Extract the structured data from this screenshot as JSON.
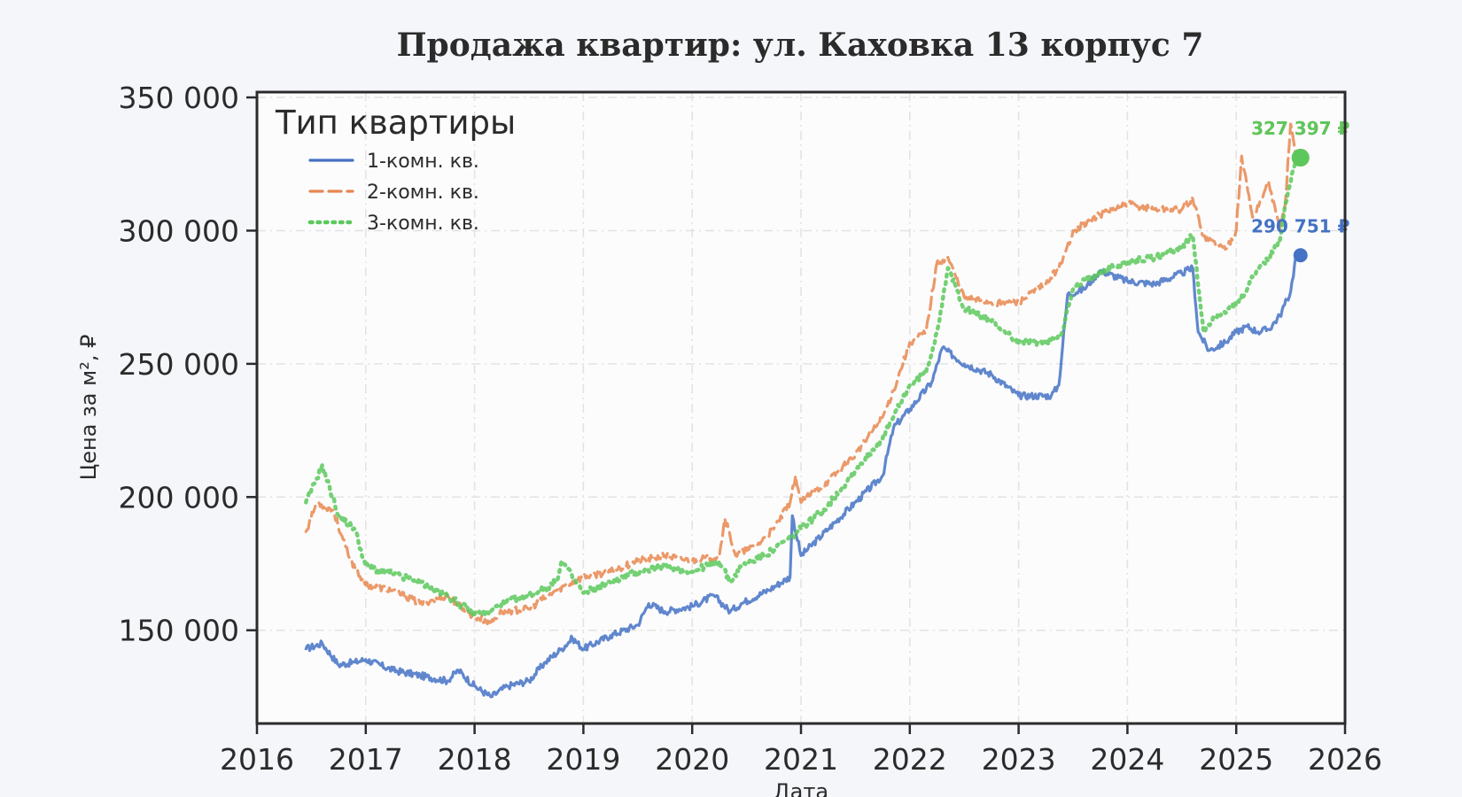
{
  "chart_data": {
    "type": "line",
    "title": "Продажа квартир: ул. Каховка 13 корпус 7",
    "xlabel": "Дата",
    "ylabel": "Цена за м², ₽",
    "xlim": [
      2016,
      2026
    ],
    "ylim": [
      115000,
      352000
    ],
    "x_ticks": [
      "2016",
      "2017",
      "2018",
      "2019",
      "2020",
      "2021",
      "2022",
      "2023",
      "2024",
      "2025",
      "2026"
    ],
    "y_ticks": [
      "150 000",
      "200 000",
      "250 000",
      "300 000",
      "350 000"
    ],
    "grid": true,
    "legend": {
      "title": "Тип квартиры",
      "position": "top-left"
    },
    "series": [
      {
        "name": "1-комн. кв.",
        "color": "#4472c4",
        "style": "solid",
        "end_label": "290 751 ₽",
        "end_value": 290751,
        "x": [
          2016.45,
          2016.6,
          2016.75,
          2016.9,
          2017.0,
          2017.25,
          2017.5,
          2017.75,
          2017.85,
          2018.0,
          2018.15,
          2018.3,
          2018.5,
          2018.65,
          2018.8,
          2018.9,
          2019.0,
          2019.25,
          2019.5,
          2019.6,
          2019.75,
          2020.0,
          2020.2,
          2020.35,
          2020.45,
          2020.7,
          2020.9,
          2020.92,
          2021.0,
          2021.25,
          2021.5,
          2021.75,
          2021.85,
          2022.0,
          2022.2,
          2022.3,
          2022.5,
          2022.75,
          2023.0,
          2023.3,
          2023.37,
          2023.45,
          2023.6,
          2023.75,
          2024.0,
          2024.25,
          2024.5,
          2024.6,
          2024.65,
          2024.75,
          2024.9,
          2025.0,
          2025.1,
          2025.2,
          2025.3,
          2025.4,
          2025.5,
          2025.55
        ],
        "y": [
          143000,
          145000,
          137000,
          138000,
          139000,
          135000,
          133000,
          131000,
          135000,
          129000,
          125000,
          129000,
          131000,
          138000,
          143000,
          147000,
          143000,
          148000,
          152000,
          160000,
          157000,
          159000,
          163000,
          157000,
          160000,
          165000,
          170000,
          193000,
          178000,
          188000,
          198000,
          208000,
          226000,
          233000,
          243000,
          256000,
          250000,
          246000,
          238000,
          238000,
          242000,
          276000,
          278000,
          285000,
          281000,
          280000,
          284000,
          286000,
          262000,
          255000,
          258000,
          262000,
          264000,
          262000,
          263000,
          268000,
          277000,
          290751
        ]
      },
      {
        "name": "2-комн. кв.",
        "color": "#e8874f",
        "style": "dashed",
        "end_label": "327 397 ₽",
        "end_value": 327397,
        "x": [
          2016.45,
          2016.55,
          2016.7,
          2016.85,
          2017.0,
          2017.25,
          2017.5,
          2017.75,
          2017.9,
          2018.0,
          2018.15,
          2018.25,
          2018.5,
          2018.75,
          2019.0,
          2019.25,
          2019.5,
          2019.75,
          2020.0,
          2020.25,
          2020.3,
          2020.4,
          2020.6,
          2020.75,
          2020.9,
          2020.95,
          2021.0,
          2021.25,
          2021.5,
          2021.75,
          2021.85,
          2022.0,
          2022.15,
          2022.25,
          2022.35,
          2022.5,
          2022.75,
          2023.0,
          2023.25,
          2023.4,
          2023.5,
          2023.75,
          2024.0,
          2024.25,
          2024.5,
          2024.6,
          2024.7,
          2024.9,
          2025.0,
          2025.05,
          2025.15,
          2025.3,
          2025.4,
          2025.45,
          2025.5,
          2025.55
        ],
        "y": [
          187000,
          198000,
          195000,
          177000,
          167000,
          165000,
          160000,
          163000,
          158000,
          155000,
          153000,
          157000,
          158000,
          165000,
          170000,
          172000,
          176000,
          178000,
          176000,
          178000,
          192000,
          178000,
          182000,
          188000,
          198000,
          208000,
          198000,
          206000,
          216000,
          230000,
          240000,
          258000,
          262000,
          288000,
          290000,
          275000,
          273000,
          273000,
          280000,
          288000,
          300000,
          306000,
          310000,
          308000,
          308000,
          312000,
          298000,
          293000,
          300000,
          328000,
          305000,
          318000,
          300000,
          310000,
          340000,
          327397
        ]
      },
      {
        "name": "3-комн. кв.",
        "color": "#5cc85c",
        "style": "dotted",
        "end_label": "327 397 ₽",
        "end_value": 327397,
        "x": [
          2016.45,
          2016.55,
          2016.6,
          2016.75,
          2016.9,
          2017.0,
          2017.25,
          2017.5,
          2017.75,
          2018.0,
          2018.15,
          2018.25,
          2018.5,
          2018.75,
          2018.8,
          2019.0,
          2019.25,
          2019.5,
          2019.75,
          2020.0,
          2020.25,
          2020.35,
          2020.45,
          2020.75,
          2021.0,
          2021.25,
          2021.5,
          2021.75,
          2022.0,
          2022.15,
          2022.25,
          2022.35,
          2022.5,
          2022.75,
          2023.0,
          2023.25,
          2023.4,
          2023.5,
          2023.75,
          2024.0,
          2024.25,
          2024.5,
          2024.6,
          2024.7,
          2024.8,
          2025.0,
          2025.1,
          2025.2,
          2025.3,
          2025.4,
          2025.45,
          2025.5,
          2025.55
        ],
        "y": [
          198000,
          207000,
          212000,
          193000,
          188000,
          174000,
          171000,
          168000,
          163000,
          156000,
          157000,
          160000,
          163000,
          168000,
          176000,
          164000,
          168000,
          172000,
          174000,
          172000,
          176000,
          168000,
          174000,
          180000,
          188000,
          197000,
          210000,
          222000,
          242000,
          247000,
          262000,
          286000,
          271000,
          266000,
          258000,
          258000,
          262000,
          278000,
          285000,
          288000,
          290000,
          294000,
          298000,
          262000,
          268000,
          272000,
          278000,
          286000,
          290000,
          296000,
          310000,
          318000,
          327397
        ]
      }
    ]
  }
}
